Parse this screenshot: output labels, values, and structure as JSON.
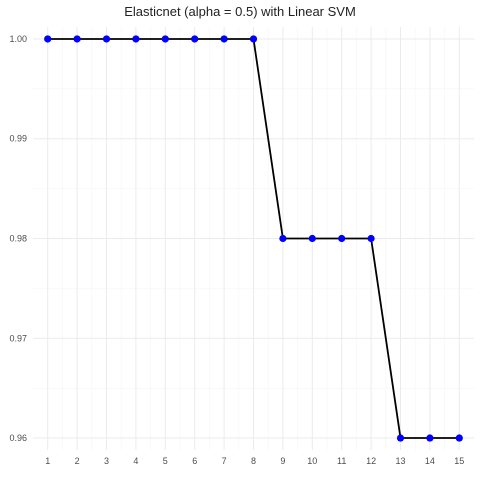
{
  "chart_data": {
    "type": "line",
    "title": "Elasticnet (alpha = 0.5) with Linear SVM",
    "xlabel": "",
    "ylabel": "",
    "x": [
      1,
      2,
      3,
      4,
      5,
      6,
      7,
      8,
      9,
      10,
      11,
      12,
      13,
      14,
      15
    ],
    "x_tick_labels": [
      "1",
      "2",
      "3",
      "4",
      "5",
      "6",
      "7",
      "8",
      "9",
      "10",
      "11",
      "12",
      "13",
      "14",
      "15"
    ],
    "y_tick_values": [
      0.96,
      0.97,
      0.98,
      0.99,
      1.0
    ],
    "y_tick_labels": [
      "0.96",
      "0.97",
      "0.98",
      "0.99",
      "1.00"
    ],
    "xlim": [
      0.5,
      15.5
    ],
    "ylim": [
      0.9588,
      1.0012
    ],
    "grid": true,
    "series": [
      {
        "values": [
          1.0,
          1.0,
          1.0,
          1.0,
          1.0,
          1.0,
          1.0,
          1.0,
          0.98,
          0.98,
          0.98,
          0.98,
          0.96,
          0.96,
          0.96
        ],
        "line_color": "#000000",
        "point_color": "#0000ff"
      }
    ],
    "colors": {
      "background": "#ffffff",
      "grid_major": "#ebebeb",
      "grid_minor": "#f5f5f5",
      "tick_label": "#4d4d4d"
    }
  }
}
